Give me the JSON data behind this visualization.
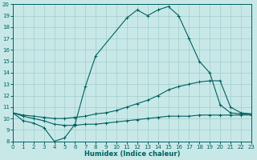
{
  "xlabel": "Humidex (Indice chaleur)",
  "xlim": [
    0,
    23
  ],
  "ylim": [
    8,
    20
  ],
  "xticks": [
    0,
    1,
    2,
    3,
    4,
    5,
    6,
    7,
    8,
    9,
    10,
    11,
    12,
    13,
    14,
    15,
    16,
    17,
    18,
    19,
    20,
    21,
    22,
    23
  ],
  "yticks": [
    8,
    9,
    10,
    11,
    12,
    13,
    14,
    15,
    16,
    17,
    18,
    19,
    20
  ],
  "bg_color": "#c8e8e8",
  "grid_color": "#a0cccc",
  "line_color": "#006060",
  "line1_x": [
    0,
    1,
    2,
    3,
    4,
    5,
    6,
    7,
    8,
    11,
    12,
    13,
    14,
    15,
    16,
    17,
    18,
    19,
    20,
    21,
    22,
    23
  ],
  "line1_y": [
    10.5,
    9.8,
    9.6,
    9.2,
    8.0,
    8.3,
    9.5,
    12.8,
    15.5,
    18.8,
    19.5,
    19.0,
    19.5,
    19.8,
    19.0,
    17.0,
    15.0,
    14.0,
    11.2,
    10.5,
    10.4,
    10.4
  ],
  "line2_x": [
    0,
    1,
    2,
    3,
    4,
    5,
    6,
    7,
    8,
    9,
    10,
    11,
    12,
    13,
    14,
    15,
    16,
    17,
    18,
    19,
    20,
    21,
    22,
    23
  ],
  "line2_y": [
    10.5,
    10.3,
    10.2,
    10.1,
    10.0,
    10.0,
    10.1,
    10.2,
    10.4,
    10.5,
    10.7,
    11.0,
    11.3,
    11.6,
    12.0,
    12.5,
    12.8,
    13.0,
    13.2,
    13.3,
    13.3,
    11.0,
    10.5,
    10.4
  ],
  "line3_x": [
    0,
    1,
    2,
    3,
    4,
    5,
    6,
    7,
    8,
    9,
    10,
    11,
    12,
    13,
    14,
    15,
    16,
    17,
    18,
    19,
    20,
    21,
    22,
    23
  ],
  "line3_y": [
    10.5,
    10.2,
    10.0,
    9.8,
    9.5,
    9.4,
    9.4,
    9.5,
    9.5,
    9.6,
    9.7,
    9.8,
    9.9,
    10.0,
    10.1,
    10.2,
    10.2,
    10.2,
    10.3,
    10.3,
    10.3,
    10.3,
    10.3,
    10.3
  ]
}
